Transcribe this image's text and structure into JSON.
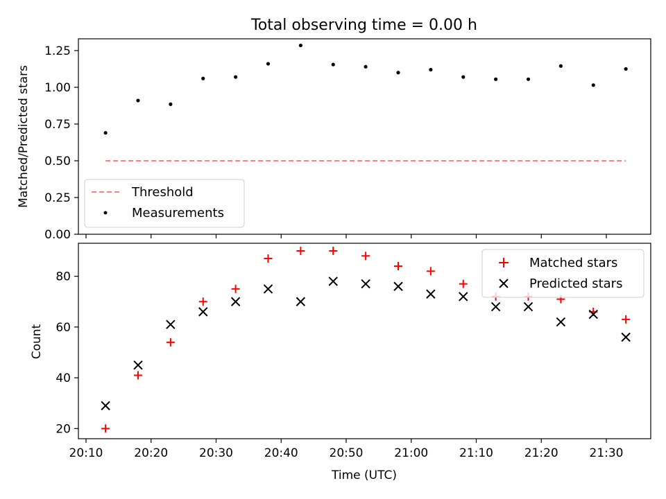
{
  "chart_data": [
    {
      "type": "scatter",
      "title": "Total observing time = 0.00 h",
      "xlabel": "",
      "ylabel": "Matched/Predicted stars",
      "x_ticks": [
        "20:10",
        "20:20",
        "20:30",
        "20:40",
        "20:50",
        "21:00",
        "21:10",
        "21:20",
        "21:30"
      ],
      "x_tick_labels_visible": false,
      "ylim": [
        0.0,
        1.33
      ],
      "y_ticks": [
        "0.00",
        "0.25",
        "0.50",
        "0.75",
        "1.00",
        "1.25"
      ],
      "legend": {
        "placement": "lower-left"
      },
      "series": [
        {
          "name": "Threshold",
          "style": "dashed-line",
          "color": "#ff7f7f",
          "x": [
            "20:13",
            "21:33"
          ],
          "values": [
            0.5,
            0.5
          ]
        },
        {
          "name": "Measurements",
          "style": "dot",
          "color": "#000000",
          "x": [
            "20:13",
            "20:18",
            "20:23",
            "20:28",
            "20:33",
            "20:38",
            "20:43",
            "20:48",
            "20:53",
            "20:58",
            "21:03",
            "21:08",
            "21:13",
            "21:18",
            "21:23",
            "21:28",
            "21:33"
          ],
          "values": [
            0.69,
            0.91,
            0.885,
            1.06,
            1.07,
            1.16,
            1.285,
            1.155,
            1.14,
            1.1,
            1.12,
            1.07,
            1.055,
            1.055,
            1.145,
            1.015,
            1.125
          ]
        }
      ]
    },
    {
      "type": "scatter",
      "title": "",
      "xlabel": "Time (UTC)",
      "ylabel": "Count",
      "x_ticks": [
        "20:10",
        "20:20",
        "20:30",
        "20:40",
        "20:50",
        "21:00",
        "21:10",
        "21:20",
        "21:30"
      ],
      "x_tick_labels_visible": true,
      "ylim": [
        16,
        93
      ],
      "y_ticks": [
        "20",
        "40",
        "60",
        "80"
      ],
      "legend": {
        "placement": "upper-right"
      },
      "series": [
        {
          "name": "Matched stars",
          "style": "plus",
          "color": "#ff0000",
          "x": [
            "20:13",
            "20:18",
            "20:23",
            "20:28",
            "20:33",
            "20:38",
            "20:43",
            "20:48",
            "20:53",
            "20:58",
            "21:03",
            "21:08",
            "21:13",
            "21:18",
            "21:23",
            "21:28",
            "21:33"
          ],
          "values": [
            20,
            41,
            54,
            70,
            75,
            87,
            90,
            90,
            88,
            84,
            82,
            77,
            72,
            72,
            71,
            66,
            63
          ]
        },
        {
          "name": "Predicted stars",
          "style": "x",
          "color": "#000000",
          "x": [
            "20:13",
            "20:18",
            "20:23",
            "20:28",
            "20:33",
            "20:38",
            "20:43",
            "20:48",
            "20:53",
            "20:58",
            "21:03",
            "21:08",
            "21:13",
            "21:18",
            "21:23",
            "21:28",
            "21:33"
          ],
          "values": [
            29,
            45,
            61,
            66,
            70,
            75,
            70,
            78,
            77,
            76,
            73,
            72,
            68,
            68,
            62,
            65,
            56
          ]
        }
      ]
    }
  ]
}
